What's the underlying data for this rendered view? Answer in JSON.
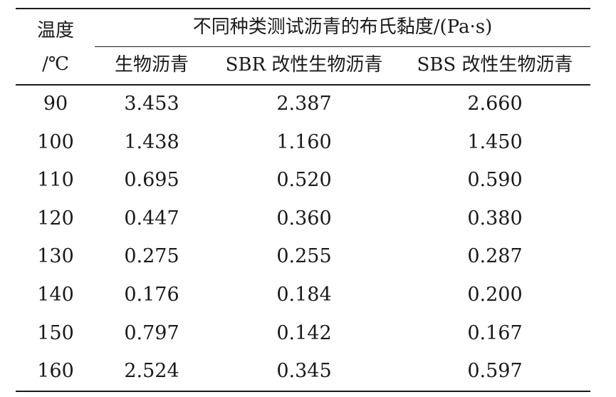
{
  "header": {
    "temp_label_line1": "温度",
    "temp_label_line2": "/℃",
    "group_title": "不同种类测试沥青的布氏黏度/(Pa·s)",
    "columns": [
      "生物沥青",
      "SBR 改性生物沥青",
      "SBS 改性生物沥青"
    ]
  },
  "rows": [
    {
      "temp": "90",
      "bio": "3.453",
      "sbr": "2.387",
      "sbs": "2.660"
    },
    {
      "temp": "100",
      "bio": "1.438",
      "sbr": "1.160",
      "sbs": "1.450"
    },
    {
      "temp": "110",
      "bio": "0.695",
      "sbr": "0.520",
      "sbs": "0.590"
    },
    {
      "temp": "120",
      "bio": "0.447",
      "sbr": "0.360",
      "sbs": "0.380"
    },
    {
      "temp": "130",
      "bio": "0.275",
      "sbr": "0.255",
      "sbs": "0.287"
    },
    {
      "temp": "140",
      "bio": "0.176",
      "sbr": "0.184",
      "sbs": "0.200"
    },
    {
      "temp": "150",
      "bio": "0.797",
      "sbr": "0.142",
      "sbs": "0.167"
    },
    {
      "temp": "160",
      "bio": "2.524",
      "sbr": "0.345",
      "sbs": "0.597"
    }
  ]
}
